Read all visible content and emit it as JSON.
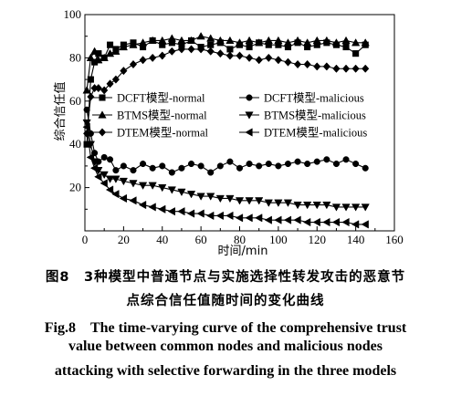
{
  "chart_data": {
    "type": "line",
    "xlabel": "时间/min",
    "ylabel": "综合信任值",
    "xlim": [
      0,
      160
    ],
    "ylim": [
      0,
      100
    ],
    "xticks": [
      0,
      20,
      40,
      60,
      80,
      100,
      120,
      140,
      160
    ],
    "yticks": [
      20,
      40,
      60,
      80,
      100
    ],
    "grid": false,
    "legend": "center-left, two columns",
    "series": [
      {
        "name": "DCFT模型-normal",
        "marker": "square",
        "x": [
          1,
          3,
          5,
          7,
          10,
          13,
          16,
          20,
          25,
          30,
          35,
          40,
          45,
          50,
          55,
          60,
          65,
          70,
          75,
          80,
          85,
          90,
          95,
          100,
          105,
          110,
          115,
          120,
          125,
          130,
          135,
          140,
          145
        ],
        "y": [
          40,
          70,
          78,
          82,
          80,
          86,
          84,
          86,
          87,
          85,
          88,
          86,
          87,
          86,
          88,
          85,
          86,
          87,
          84,
          86,
          85,
          87,
          86,
          86,
          85,
          87,
          85,
          86,
          87,
          86,
          85,
          82,
          86
        ]
      },
      {
        "name": "DCFT模型-malicious",
        "marker": "circle",
        "x": [
          1,
          3,
          5,
          7,
          10,
          13,
          16,
          20,
          25,
          30,
          35,
          40,
          45,
          50,
          55,
          60,
          65,
          70,
          75,
          80,
          85,
          90,
          95,
          100,
          105,
          110,
          115,
          120,
          125,
          130,
          135,
          140,
          145
        ],
        "y": [
          56,
          45,
          36,
          32,
          34,
          33,
          28,
          30,
          28,
          31,
          29,
          30,
          27,
          29,
          31,
          30,
          27,
          30,
          32,
          29,
          31,
          30,
          31,
          30,
          31,
          32,
          31,
          32,
          33,
          31,
          33,
          31,
          29
        ]
      },
      {
        "name": "BTMS模型-normal",
        "marker": "triangle-up",
        "x": [
          1,
          3,
          5,
          7,
          10,
          13,
          16,
          20,
          25,
          30,
          35,
          40,
          45,
          50,
          55,
          60,
          65,
          70,
          75,
          80,
          85,
          90,
          95,
          100,
          105,
          110,
          115,
          120,
          125,
          130,
          135,
          140,
          145
        ],
        "y": [
          65,
          80,
          83,
          79,
          80,
          82,
          83,
          85,
          86,
          87,
          88,
          88,
          89,
          88,
          88,
          90,
          89,
          88,
          88,
          87,
          88,
          87,
          88,
          88,
          87,
          88,
          87,
          88,
          88,
          87,
          88,
          87,
          87
        ]
      },
      {
        "name": "BTMS模型-malicious",
        "marker": "triangle-down",
        "x": [
          1,
          3,
          5,
          7,
          10,
          13,
          16,
          20,
          25,
          30,
          35,
          40,
          45,
          50,
          55,
          60,
          65,
          70,
          75,
          80,
          85,
          90,
          95,
          100,
          105,
          110,
          115,
          120,
          125,
          130,
          135,
          140,
          145
        ],
        "y": [
          50,
          40,
          32,
          28,
          26,
          24,
          24,
          23,
          22,
          21,
          21,
          20,
          19,
          18,
          17,
          16,
          16,
          15,
          15,
          14,
          14,
          14,
          13,
          13,
          13,
          12,
          12,
          12,
          12,
          11,
          11,
          11,
          11
        ]
      },
      {
        "name": "DTEM模型-normal",
        "marker": "diamond",
        "x": [
          1,
          3,
          5,
          7,
          10,
          13,
          16,
          20,
          25,
          30,
          35,
          40,
          45,
          50,
          55,
          60,
          65,
          70,
          75,
          80,
          85,
          90,
          95,
          100,
          105,
          110,
          115,
          120,
          125,
          130,
          135,
          140,
          145
        ],
        "y": [
          45,
          62,
          66,
          66,
          65,
          68,
          70,
          74,
          77,
          79,
          80,
          81,
          83,
          84,
          84,
          84,
          83,
          82,
          81,
          81,
          80,
          79,
          80,
          79,
          78,
          77,
          77,
          76,
          76,
          75,
          75,
          75,
          75
        ]
      },
      {
        "name": "DTEM模型-malicious",
        "marker": "triangle-left",
        "x": [
          1,
          3,
          5,
          7,
          10,
          13,
          16,
          20,
          25,
          30,
          35,
          40,
          45,
          50,
          55,
          60,
          65,
          70,
          75,
          80,
          85,
          90,
          95,
          100,
          105,
          110,
          115,
          120,
          125,
          130,
          135,
          140,
          145
        ],
        "y": [
          48,
          34,
          29,
          25,
          22,
          19,
          17,
          15,
          14,
          12,
          11,
          10,
          9,
          9,
          8,
          8,
          7,
          7,
          7,
          6,
          6,
          6,
          5,
          5,
          5,
          5,
          4,
          4,
          4,
          4,
          4,
          3,
          3
        ]
      }
    ]
  },
  "caption": {
    "cn_line1": "图8　3种模型中普通节点与实施选择性转发攻击的恶意节",
    "cn_line2": "点综合信任值随时间的变化曲线",
    "en_line1": "Fig.8　The time-varying curve of the comprehensive trust",
    "en_line2": "value between common nodes and malicious nodes",
    "en_line3": "attacking with selective forwarding in the three models"
  }
}
